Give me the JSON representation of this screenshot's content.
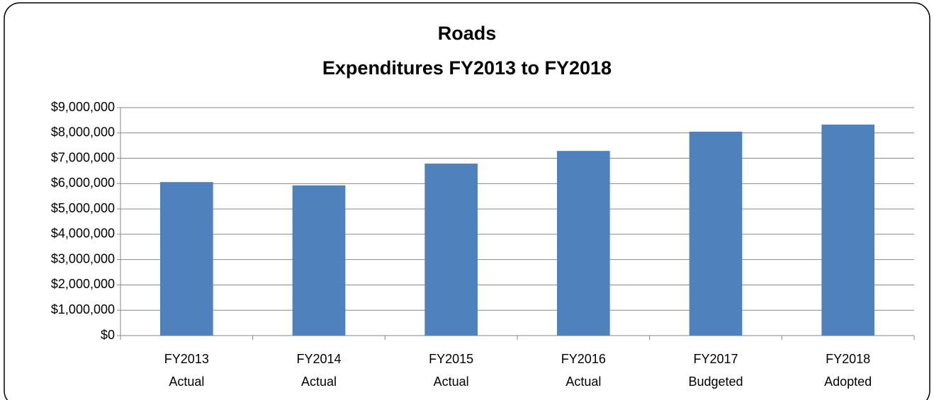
{
  "chart_data": {
    "type": "bar",
    "title": "Roads",
    "subtitle": "Expenditures FY2013 to FY2018",
    "categories": [
      [
        "FY2013",
        "Actual"
      ],
      [
        "FY2014",
        "Actual"
      ],
      [
        "FY2015",
        "Actual"
      ],
      [
        "FY2016",
        "Actual"
      ],
      [
        "FY2017",
        "Budgeted"
      ],
      [
        "FY2018",
        "Adopted"
      ]
    ],
    "values": [
      6060000,
      5930000,
      6790000,
      7290000,
      8050000,
      8330000
    ],
    "color": "#4f81bd",
    "ylim": [
      0,
      9000000
    ],
    "yticks": [
      {
        "value": 0,
        "label": "$0"
      },
      {
        "value": 1000000,
        "label": "$1,000,000"
      },
      {
        "value": 2000000,
        "label": "$2,000,000"
      },
      {
        "value": 3000000,
        "label": "$3,000,000"
      },
      {
        "value": 4000000,
        "label": "$4,000,000"
      },
      {
        "value": 5000000,
        "label": "$5,000,000"
      },
      {
        "value": 6000000,
        "label": "$6,000,000"
      },
      {
        "value": 7000000,
        "label": "$7,000,000"
      },
      {
        "value": 8000000,
        "label": "$8,000,000"
      },
      {
        "value": 9000000,
        "label": "$9,000,000"
      }
    ],
    "grid": true
  }
}
